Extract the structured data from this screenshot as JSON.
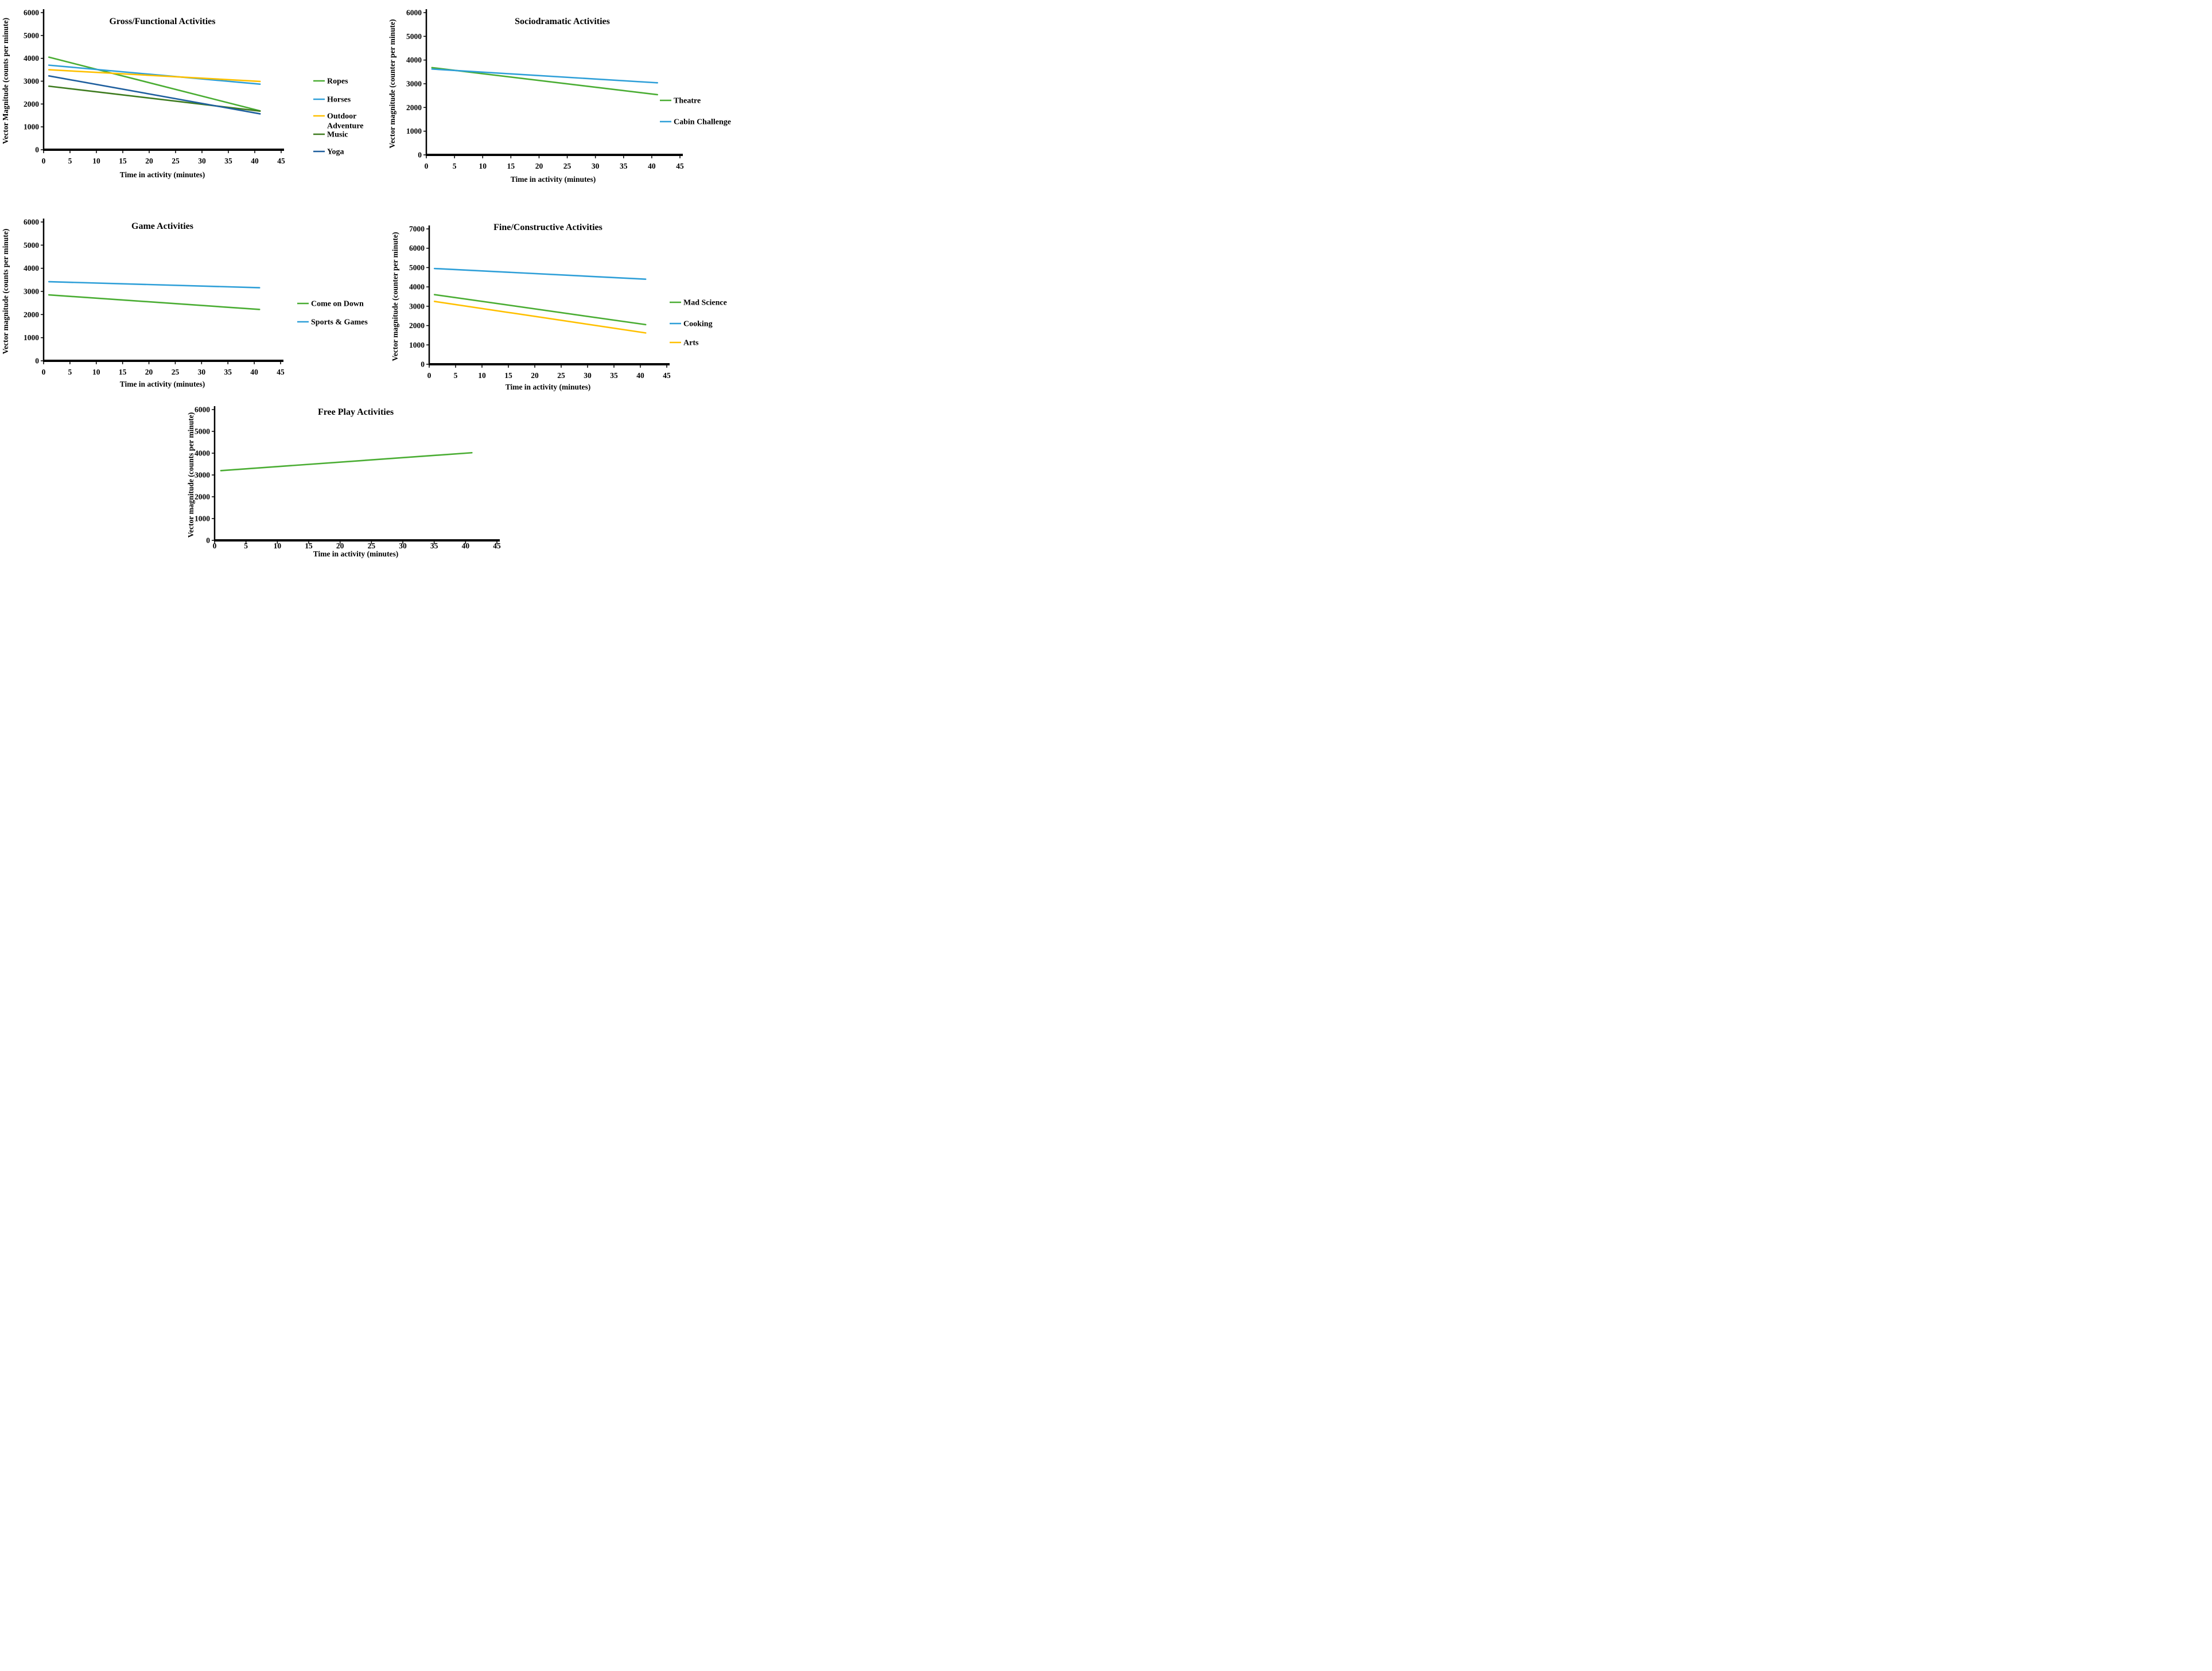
{
  "figure": {
    "description_visible_charts": 5
  },
  "chart_data": [
    {
      "id": "gross-functional",
      "type": "line",
      "title": "Gross/Functional Activities",
      "ylabel": "Vector Magnitude (counts per minute)",
      "xlabel": "Time in activity (minutes)",
      "ylim": [
        0,
        6000
      ],
      "xlim": [
        0,
        45
      ],
      "yticks": [
        0,
        1000,
        2000,
        3000,
        4000,
        5000,
        6000
      ],
      "xticks": [
        0,
        5,
        10,
        15,
        20,
        25,
        30,
        35,
        40,
        45
      ],
      "x": [
        1,
        41
      ],
      "grid": false,
      "legend_position": "right",
      "series": [
        {
          "name": "Ropes",
          "color": "#4AAD33",
          "values": [
            4050,
            1700
          ]
        },
        {
          "name": "Horses",
          "color": "#2E9FD8",
          "values": [
            3700,
            2870
          ]
        },
        {
          "name": "Outdoor Adventure",
          "color": "#FFC000",
          "values": [
            3500,
            2990
          ]
        },
        {
          "name": "Music",
          "color": "#3E7B1F",
          "values": [
            2780,
            1690
          ]
        },
        {
          "name": "Yoga",
          "color": "#1F5F9E",
          "values": [
            3230,
            1570
          ]
        }
      ]
    },
    {
      "id": "sociodramatic",
      "type": "line",
      "title": "Sociodramatic Activities",
      "ylabel": "Vector magnitude (counter per minute)",
      "xlabel": "Time in activity (minutes)",
      "ylim": [
        0,
        6000
      ],
      "xlim": [
        0,
        45
      ],
      "yticks": [
        0,
        1000,
        2000,
        3000,
        4000,
        5000,
        6000
      ],
      "xticks": [
        0,
        5,
        10,
        15,
        20,
        25,
        30,
        35,
        40,
        45
      ],
      "x": [
        1,
        41
      ],
      "grid": false,
      "legend_position": "right",
      "series": [
        {
          "name": "Theatre",
          "color": "#4AAD33",
          "values": [
            3680,
            2540
          ]
        },
        {
          "name": "Cabin Challenge",
          "color": "#2E9FD8",
          "values": [
            3620,
            3040
          ]
        }
      ]
    },
    {
      "id": "game",
      "type": "line",
      "title": "Game Activities",
      "ylabel": "Vector magnitude (counts per minute)",
      "xlabel": "Time in activity (minutes)",
      "ylim": [
        0,
        6000
      ],
      "xlim": [
        0,
        45
      ],
      "yticks": [
        0,
        1000,
        2000,
        3000,
        4000,
        5000,
        6000
      ],
      "xticks": [
        0,
        5,
        10,
        15,
        20,
        25,
        30,
        35,
        40,
        45
      ],
      "x": [
        1,
        41
      ],
      "grid": false,
      "legend_position": "right",
      "series": [
        {
          "name": "Come on Down",
          "color": "#4AAD33",
          "values": [
            2850,
            2220
          ]
        },
        {
          "name": "Sports & Games",
          "color": "#2E9FD8",
          "values": [
            3420,
            3160
          ]
        }
      ]
    },
    {
      "id": "fine-constructive",
      "type": "line",
      "title": "Fine/Constructive Activities",
      "ylabel": "Vector magnitude (counter per minute)",
      "xlabel": "Time in activity (minutes)",
      "ylim": [
        0,
        7000
      ],
      "xlim": [
        0,
        45
      ],
      "yticks": [
        0,
        1000,
        2000,
        3000,
        4000,
        5000,
        6000,
        7000
      ],
      "xticks": [
        0,
        5,
        10,
        15,
        20,
        25,
        30,
        35,
        40,
        45
      ],
      "x": [
        1,
        41
      ],
      "grid": false,
      "legend_position": "right",
      "series": [
        {
          "name": "Mad Science",
          "color": "#4AAD33",
          "values": [
            3600,
            2050
          ]
        },
        {
          "name": "Cooking",
          "color": "#2E9FD8",
          "values": [
            4950,
            4400
          ]
        },
        {
          "name": "Arts",
          "color": "#FFC000",
          "values": [
            3250,
            1620
          ]
        }
      ]
    },
    {
      "id": "free-play",
      "type": "line",
      "title": "Free Play Activities",
      "ylabel": "Vector magnitude (counts per minute)",
      "xlabel": "Time in activity (minutes)",
      "ylim": [
        0,
        6000
      ],
      "xlim": [
        0,
        45
      ],
      "yticks": [
        0,
        1000,
        2000,
        3000,
        4000,
        5000,
        6000
      ],
      "xticks": [
        0,
        5,
        10,
        15,
        20,
        25,
        30,
        35,
        40,
        45
      ],
      "x": [
        1,
        41
      ],
      "grid": false,
      "legend_position": "none",
      "series": [
        {
          "name": "",
          "color": "#4AAD33",
          "values": [
            3200,
            4020
          ]
        }
      ]
    }
  ]
}
